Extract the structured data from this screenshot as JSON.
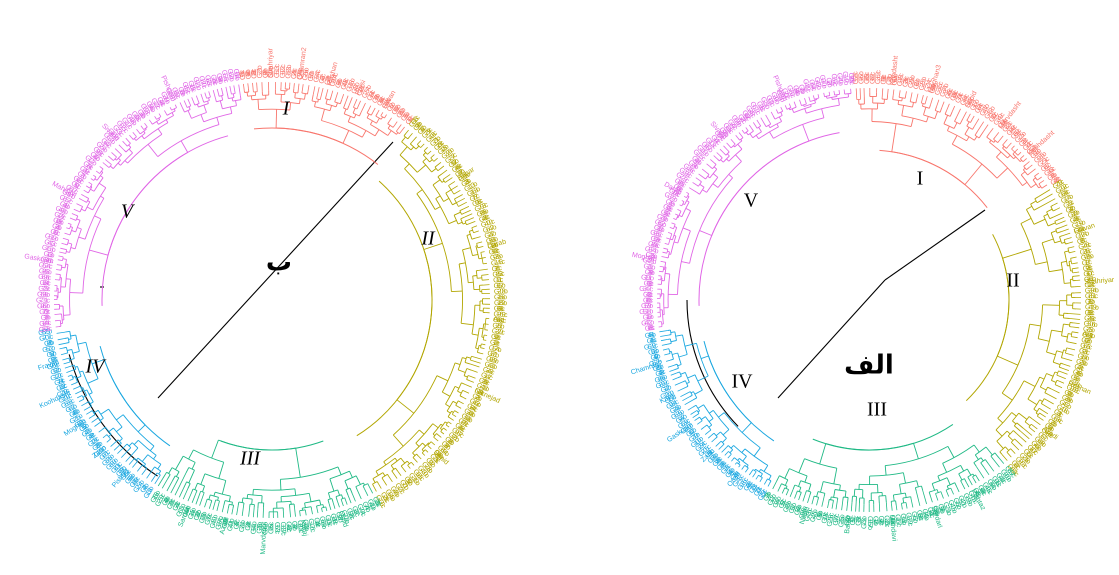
{
  "colors": {
    "I": "#f8766d",
    "II": "#b2a600",
    "III": "#1fb985",
    "IV": "#1aa7e0",
    "V": "#e066e6",
    "trunk": "#000000"
  },
  "panels": [
    {
      "id": "right",
      "label": "الف",
      "clusters": [
        {
          "id": "I",
          "label": "I"
        },
        {
          "id": "II",
          "label": "II"
        },
        {
          "id": "III",
          "label": "III"
        },
        {
          "id": "IV",
          "label": "IV"
        },
        {
          "id": "V",
          "label": "V"
        }
      ],
      "leaf_labels": [
        "Kohdasht",
        "Moghan3",
        "Sepid",
        "Marvdasht",
        "Koohdasht",
        "Fravan",
        "Shahriyar",
        "Arg",
        "Roshan",
        "Azadi",
        "Pishtaz",
        "Sardari",
        "Mahdavi",
        "Bahar",
        "Nikan",
        "Omid",
        "Zarin",
        "Gaskojen",
        "Karaj",
        "Chamran2",
        "Moghan",
        "Darab",
        "Sivand",
        "Pishgam"
      ]
    },
    {
      "id": "left",
      "label": "ب",
      "clusters": [
        {
          "id": "I",
          "label": "I"
        },
        {
          "id": "II",
          "label": "II"
        },
        {
          "id": "III",
          "label": "III"
        },
        {
          "id": "IV",
          "label": "IV"
        },
        {
          "id": "V",
          "label": "V"
        }
      ],
      "leaf_labels": [
        "Shahriyar",
        "Chamran2",
        "Roshan",
        "Parsi",
        "Sirvan",
        "Bahar",
        "Darab",
        "Arg",
        "Niknejad",
        "Sepid",
        "Omid",
        "Karaj",
        "Marvdasht",
        "Azadi",
        "Sardari",
        "Pishtaz",
        "Zarin",
        "Moghan",
        "Koohdasht",
        "Fravan",
        "Gaskojen",
        "Mahdavi",
        "Sivand",
        "Pishgam"
      ]
    }
  ]
}
